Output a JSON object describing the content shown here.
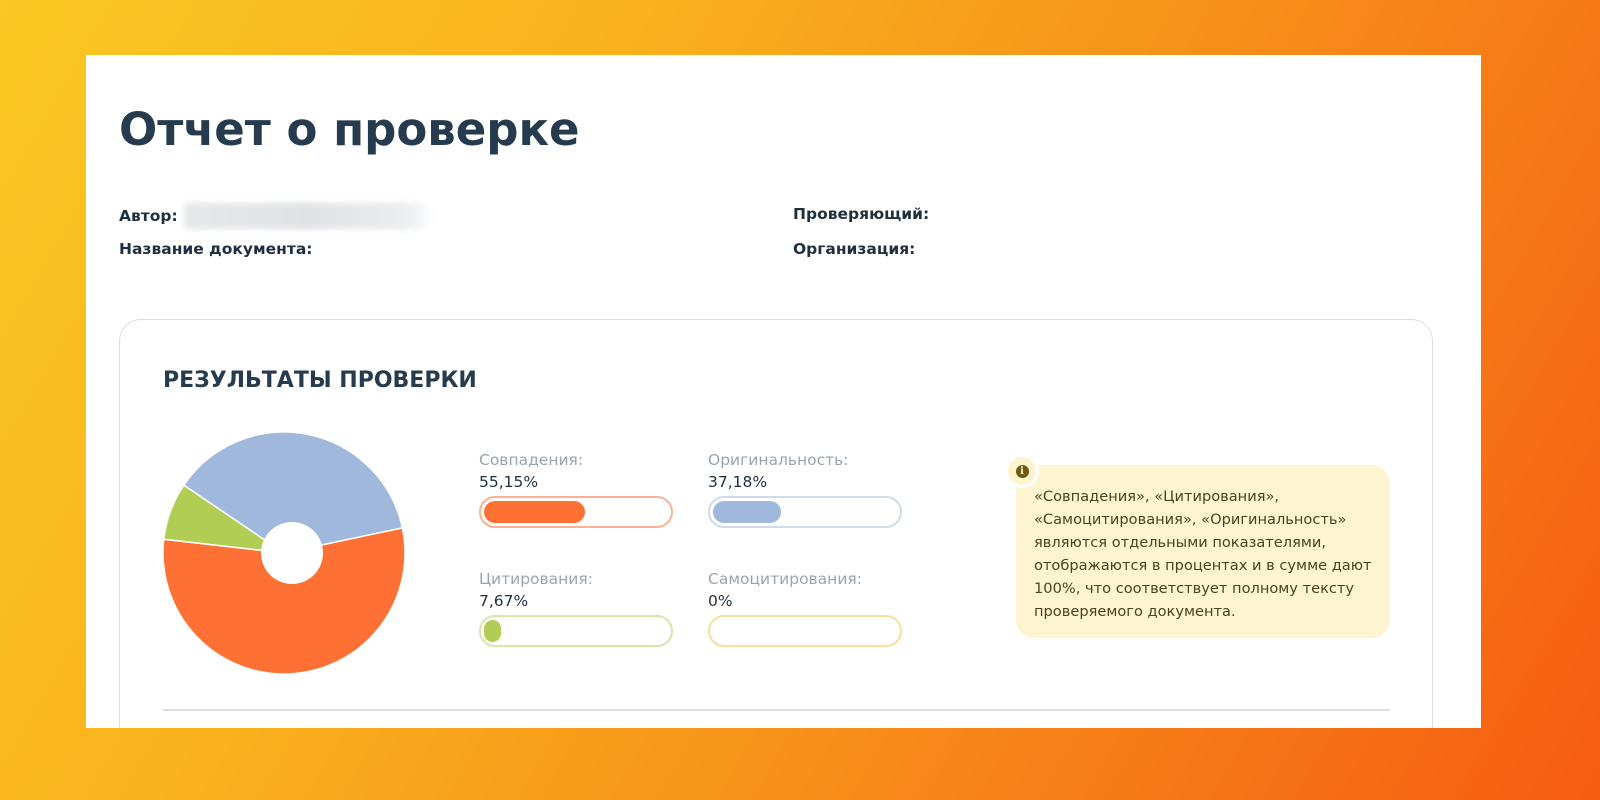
{
  "report": {
    "title": "Отчет о проверке",
    "meta": {
      "author_label": "Автор:",
      "author_value": "",
      "document_name_label": "Название документа:",
      "document_name_value": "",
      "reviewer_label": "Проверяющий:",
      "reviewer_value": "",
      "organization_label": "Организация:",
      "organization_value": ""
    }
  },
  "results": {
    "title": "РЕЗУЛЬТАТЫ ПРОВЕРКИ",
    "metrics": [
      {
        "key": "matches",
        "label": "Совпадения:",
        "value": "55,15%",
        "percent": 55.15,
        "color": "#ff7034",
        "border": "#f9b195"
      },
      {
        "key": "originality",
        "label": "Оригинальность:",
        "value": "37,18%",
        "percent": 37.18,
        "color": "#a0b8dc",
        "border": "#cfdbea"
      },
      {
        "key": "citations",
        "label": "Цитирования:",
        "value": "7,67%",
        "percent": 7.67,
        "color": "#b2cd54",
        "border": "#d8e6aa"
      },
      {
        "key": "self_citations",
        "label": "Самоцитирования:",
        "value": "0%",
        "percent": 0,
        "color": "#f7d774",
        "border": "#f8e09a"
      }
    ],
    "info_note": "«Совпадения», «Цитирования», «Самоцитирования», «Оригинальность» являются отдельными показателями, отображаются в процентах и в сумме дают 100%, что соответствует полному тексту проверяемого документа.",
    "info_icon": "info-icon"
  },
  "chart_data": {
    "type": "pie",
    "title": "РЕЗУЛЬТАТЫ ПРОВЕРКИ",
    "categories": [
      "Совпадения",
      "Оригинальность",
      "Цитирования",
      "Самоцитирования"
    ],
    "values": [
      55.15,
      37.18,
      7.67,
      0
    ],
    "colors": [
      "#ff7034",
      "#a0b8dc",
      "#b2cd54",
      "#f7d774"
    ],
    "donut_hole": true,
    "legend": "none"
  }
}
